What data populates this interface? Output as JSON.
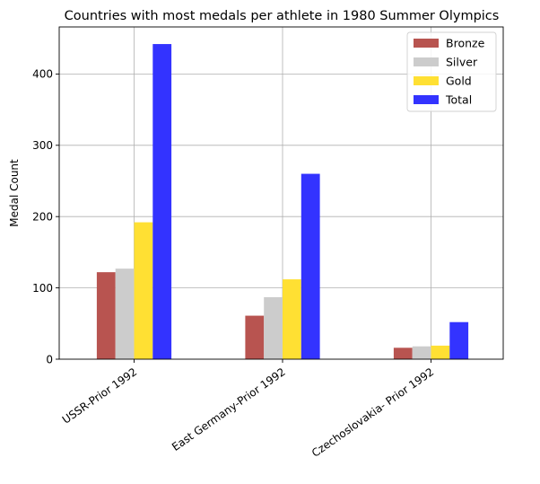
{
  "chart_data": {
    "type": "bar",
    "title": "Countries with most medals per athlete in 1980 Summer Olympics",
    "xlabel": "",
    "ylabel": "Medal Count",
    "categories": [
      "USSR-Prior 1992",
      "East Germany-Prior 1992",
      "Czechoslovakia- Prior 1992"
    ],
    "series": [
      {
        "name": "Bronze",
        "color": "#b85450",
        "values": [
          122,
          61,
          16
        ]
      },
      {
        "name": "Silver",
        "color": "#cccccc",
        "values": [
          127,
          87,
          18
        ]
      },
      {
        "name": "Gold",
        "color": "#ffe033",
        "values": [
          192,
          112,
          19
        ]
      },
      {
        "name": "Total",
        "color": "#3333ff",
        "values": [
          442,
          260,
          52
        ]
      }
    ],
    "ylim": [
      0,
      466
    ],
    "yticks": [
      0,
      100,
      200,
      300,
      400
    ],
    "grid": true,
    "legend_position": "top-right",
    "xtick_rotation": -35
  }
}
